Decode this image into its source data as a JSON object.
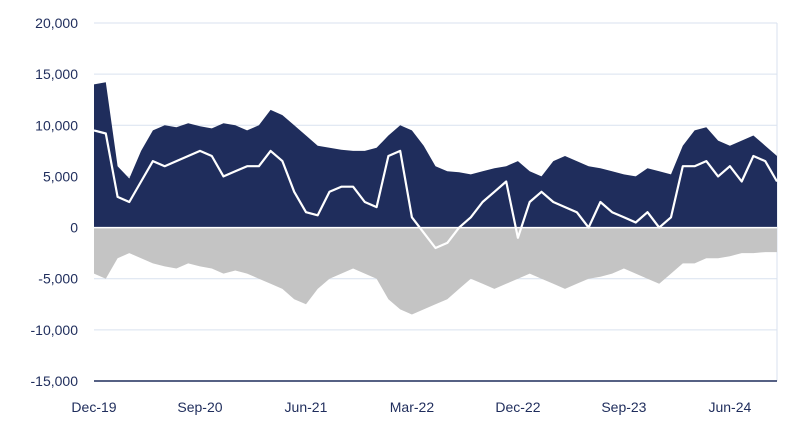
{
  "chart_data": {
    "type": "area",
    "title": "",
    "xlabel": "",
    "ylabel": "",
    "ylim": [
      -15000,
      20000
    ],
    "yticks": [
      -15000,
      -10000,
      -5000,
      0,
      5000,
      10000,
      15000,
      20000
    ],
    "ytick_labels": [
      "-15,000",
      "-10,000",
      "-5,000",
      "0",
      "5,000",
      "10,000",
      "15,000",
      "20,000"
    ],
    "xtick_labels": [
      "Dec-19",
      "Sep-20",
      "Jun-21",
      "Mar-22",
      "Dec-22",
      "Sep-23",
      "Jun-24"
    ],
    "grid": true,
    "legend": "none",
    "colors": {
      "long": "#1f2d5c",
      "short": "#c4c4c4",
      "net": "#ffffff",
      "grid": "#d9e2ef",
      "axis": "#1f2d5c"
    },
    "x": [
      "Dec-19",
      "Jan-20",
      "Feb-20",
      "Mar-20",
      "Apr-20",
      "May-20",
      "Jun-20",
      "Jul-20",
      "Aug-20",
      "Sep-20",
      "Oct-20",
      "Nov-20",
      "Dec-20",
      "Jan-21",
      "Feb-21",
      "Mar-21",
      "Apr-21",
      "May-21",
      "Jun-21",
      "Jul-21",
      "Aug-21",
      "Sep-21",
      "Oct-21",
      "Nov-21",
      "Dec-21",
      "Jan-22",
      "Feb-22",
      "Mar-22",
      "Apr-22",
      "May-22",
      "Jun-22",
      "Jul-22",
      "Aug-22",
      "Sep-22",
      "Oct-22",
      "Nov-22",
      "Dec-22",
      "Jan-23",
      "Feb-23",
      "Mar-23",
      "Apr-23",
      "May-23",
      "Jun-23",
      "Jul-23",
      "Aug-23",
      "Sep-23",
      "Oct-23",
      "Nov-23",
      "Dec-23",
      "Jan-24",
      "Feb-24",
      "Mar-24",
      "Apr-24",
      "May-24",
      "Jun-24",
      "Jul-24",
      "Aug-24",
      "Sep-24",
      "Oct-24"
    ],
    "series": [
      {
        "key": "long",
        "values": [
          14000,
          14200,
          6000,
          4800,
          7500,
          9500,
          10000,
          9800,
          10200,
          9900,
          9700,
          10200,
          10000,
          9500,
          10000,
          11500,
          11000,
          10000,
          9000,
          8000,
          7800,
          7600,
          7500,
          7500,
          7800,
          9000,
          10000,
          9500,
          8000,
          6000,
          5500,
          5400,
          5200,
          5500,
          5800,
          6000,
          6500,
          5500,
          5000,
          6500,
          7000,
          6500,
          6000,
          5800,
          5500,
          5200,
          5000,
          5800,
          5500,
          5200,
          8000,
          9500,
          9800,
          8500,
          8000,
          8500,
          9000,
          8000,
          7000
        ]
      },
      {
        "key": "short",
        "values": [
          -4500,
          -5000,
          -3000,
          -2500,
          -3000,
          -3500,
          -3800,
          -4000,
          -3500,
          -3800,
          -4000,
          -4500,
          -4200,
          -4500,
          -5000,
          -5500,
          -6000,
          -7000,
          -7500,
          -6000,
          -5000,
          -4500,
          -4000,
          -4500,
          -5000,
          -7000,
          -8000,
          -8500,
          -8000,
          -7500,
          -7000,
          -6000,
          -5000,
          -5500,
          -6000,
          -5500,
          -5000,
          -4500,
          -5000,
          -5500,
          -6000,
          -5500,
          -5000,
          -4800,
          -4500,
          -4000,
          -4500,
          -5000,
          -5500,
          -4500,
          -3500,
          -3500,
          -3000,
          -3000,
          -2800,
          -2500,
          -2500,
          -2400,
          -2400
        ]
      },
      {
        "key": "net",
        "values": [
          9500,
          9200,
          3000,
          2500,
          4500,
          6500,
          6000,
          6500,
          7000,
          7500,
          7000,
          5000,
          5500,
          6000,
          6000,
          7500,
          6500,
          3500,
          1500,
          1200,
          3500,
          4000,
          4000,
          2500,
          2000,
          7000,
          7500,
          1000,
          -500,
          -2000,
          -1500,
          0,
          1000,
          2500,
          3500,
          4500,
          -1000,
          2500,
          3500,
          2500,
          2000,
          1500,
          0,
          2500,
          1500,
          1000,
          500,
          1500,
          0,
          1000,
          6000,
          6000,
          6500,
          5000,
          6000,
          4500,
          7000,
          6500,
          4500
        ]
      }
    ]
  }
}
